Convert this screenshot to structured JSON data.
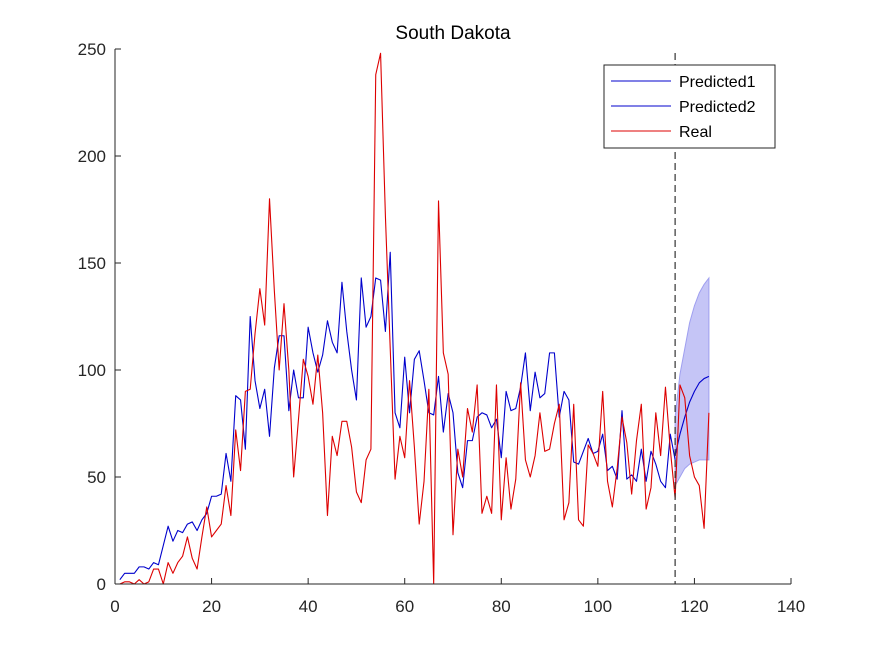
{
  "chart_data": {
    "type": "line",
    "title": "South Dakota",
    "xlabel": "",
    "ylabel": "",
    "xlim": [
      0,
      140
    ],
    "ylim": [
      0,
      250
    ],
    "xticks": [
      0,
      20,
      40,
      60,
      80,
      100,
      120,
      140
    ],
    "yticks": [
      0,
      50,
      100,
      150,
      200,
      250
    ],
    "grid": false,
    "legend_position": "top-right",
    "forecast_start_x": 116,
    "series": [
      {
        "name": "Predicted1",
        "color": "#0000cc",
        "x": [
          1,
          2,
          3,
          4,
          5,
          6,
          7,
          8,
          9,
          10,
          11,
          12,
          13,
          14,
          15,
          16,
          17,
          18,
          19,
          20,
          21,
          22,
          23,
          24,
          25,
          26,
          27,
          28,
          29,
          30,
          31,
          32,
          33,
          34,
          35,
          36,
          37,
          38,
          39,
          40,
          41,
          42,
          43,
          44,
          45,
          46,
          47,
          48,
          49,
          50,
          51,
          52,
          53,
          54,
          55,
          56,
          57,
          58,
          59,
          60,
          61,
          62,
          63,
          64,
          65,
          66,
          67,
          68,
          69,
          70,
          71,
          72,
          73,
          74,
          75,
          76,
          77,
          78,
          79,
          80,
          81,
          82,
          83,
          84,
          85,
          86,
          87,
          88,
          89,
          90,
          91,
          92,
          93,
          94,
          95,
          96,
          97,
          98,
          99,
          100,
          101,
          102,
          103,
          104,
          105,
          106,
          107,
          108,
          109,
          110,
          111,
          112,
          113,
          114,
          115,
          116
        ],
        "y": [
          2,
          5,
          5,
          5,
          8,
          8,
          7,
          10,
          9,
          18,
          27,
          20,
          25,
          24,
          28,
          29,
          25,
          30,
          33,
          41,
          41,
          42,
          61,
          48,
          88,
          86,
          63,
          125,
          95,
          82,
          91,
          69,
          101,
          116,
          116,
          81,
          100,
          87,
          87,
          120,
          108,
          99,
          107,
          123,
          113,
          108,
          141,
          118,
          100,
          86,
          143,
          120,
          125,
          143,
          142,
          118,
          155,
          80,
          73,
          106,
          80,
          105,
          109,
          95,
          80,
          79,
          97,
          71,
          89,
          80,
          52,
          45,
          67,
          67,
          78,
          80,
          79,
          73,
          77,
          59,
          90,
          81,
          82,
          92,
          108,
          81,
          99,
          87,
          89,
          108,
          108,
          78,
          90,
          86,
          57,
          56,
          62,
          68,
          61,
          62,
          70,
          53,
          55,
          49,
          81,
          49,
          51,
          48,
          63,
          48,
          62,
          56,
          48,
          45,
          70,
          58
        ]
      },
      {
        "name": "Predicted2",
        "color": "#0000cc",
        "x": [
          116,
          117,
          118,
          119,
          120,
          121,
          122,
          123
        ],
        "y": [
          60,
          70,
          78,
          85,
          90,
          94,
          96,
          97
        ],
        "band_lower": [
          46,
          50,
          54,
          56,
          57,
          58,
          58,
          58
        ],
        "band_upper": [
          78,
          98,
          110,
          122,
          130,
          136,
          140,
          143
        ],
        "band_color": "#9f9ff0"
      },
      {
        "name": "Real",
        "color": "#dd0000",
        "x": [
          1,
          2,
          3,
          4,
          5,
          6,
          7,
          8,
          9,
          10,
          11,
          12,
          13,
          14,
          15,
          16,
          17,
          18,
          19,
          20,
          21,
          22,
          23,
          24,
          25,
          26,
          27,
          28,
          29,
          30,
          31,
          32,
          33,
          34,
          35,
          36,
          37,
          38,
          39,
          40,
          41,
          42,
          43,
          44,
          45,
          46,
          47,
          48,
          49,
          50,
          51,
          52,
          53,
          54,
          55,
          56,
          57,
          58,
          59,
          60,
          61,
          62,
          63,
          64,
          65,
          66,
          67,
          68,
          69,
          70,
          71,
          72,
          73,
          74,
          75,
          76,
          77,
          78,
          79,
          80,
          81,
          82,
          83,
          84,
          85,
          86,
          87,
          88,
          89,
          90,
          91,
          92,
          93,
          94,
          95,
          96,
          97,
          98,
          99,
          100,
          101,
          102,
          103,
          104,
          105,
          106,
          107,
          108,
          109,
          110,
          111,
          112,
          113,
          114,
          115,
          116,
          117,
          118,
          119,
          120,
          121,
          122,
          123
        ],
        "y": [
          0,
          1,
          1,
          0,
          2,
          0,
          1,
          7,
          7,
          0,
          10,
          5,
          10,
          13,
          22,
          12,
          7,
          22,
          36,
          22,
          25,
          28,
          46,
          32,
          72,
          53,
          90,
          91,
          117,
          138,
          121,
          180,
          137,
          100,
          131,
          100,
          50,
          77,
          105,
          97,
          84,
          107,
          80,
          32,
          69,
          60,
          76,
          76,
          64,
          43,
          38,
          58,
          63,
          238,
          248,
          172,
          110,
          49,
          69,
          59,
          95,
          64,
          28,
          48,
          91,
          0,
          179,
          108,
          98,
          23,
          63,
          50,
          82,
          71,
          93,
          33,
          41,
          33,
          93,
          30,
          59,
          35,
          49,
          94,
          58,
          50,
          60,
          80,
          62,
          63,
          75,
          84,
          30,
          38,
          84,
          30,
          27,
          65,
          61,
          55,
          90,
          48,
          36,
          54,
          78,
          66,
          42,
          67,
          84,
          35,
          45,
          80,
          60,
          92,
          63,
          40,
          93,
          87,
          60,
          50,
          46,
          26,
          80
        ]
      }
    ]
  }
}
